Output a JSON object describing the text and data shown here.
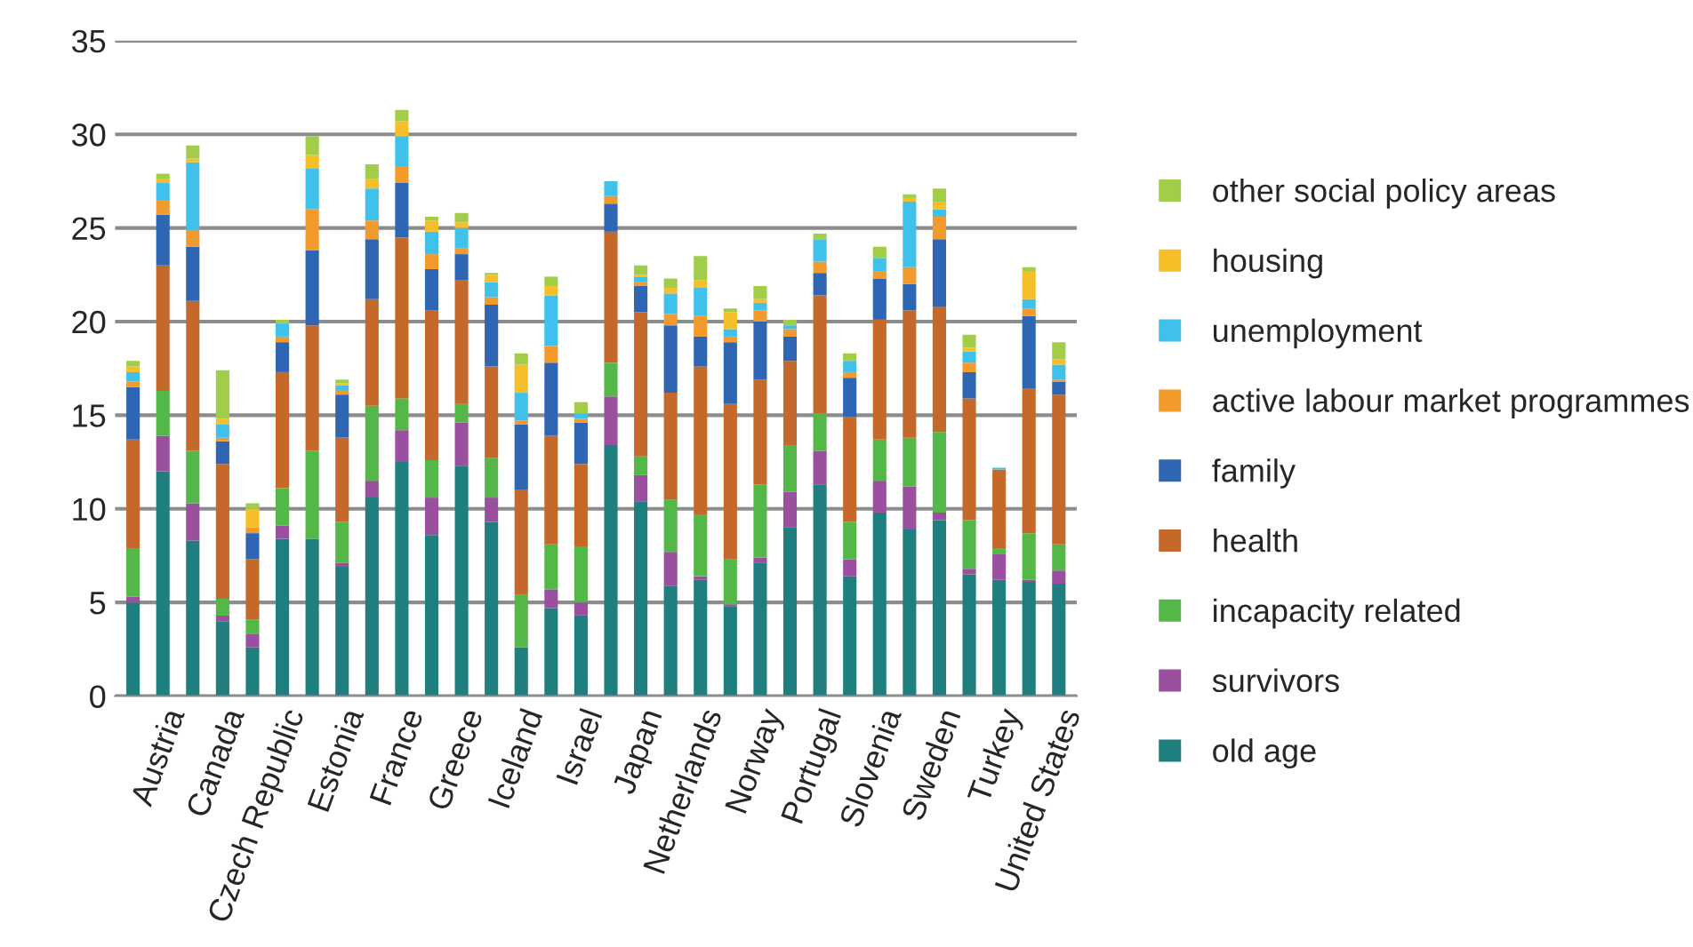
{
  "chart_data": {
    "type": "bar",
    "stacked": true,
    "categories": [
      null,
      "Austria",
      null,
      "Canada",
      null,
      "Czech Republic",
      null,
      "Estonia",
      null,
      "France",
      null,
      "Greece",
      null,
      "Iceland",
      null,
      "Israel",
      null,
      "Japan",
      null,
      "Netherlands",
      null,
      "Norway",
      null,
      "Portugal",
      null,
      "Slovenia",
      null,
      "Sweden",
      null,
      "Turkey",
      null,
      "United States"
    ],
    "series": [
      {
        "name": "old age",
        "color": "#1f7f7f",
        "values": [
          5.0,
          12.0,
          8.3,
          4.0,
          2.6,
          8.4,
          8.4,
          6.9,
          10.6,
          12.5,
          8.6,
          12.3,
          9.3,
          2.6,
          4.7,
          4.3,
          13.4,
          10.4,
          5.9,
          6.2,
          4.8,
          7.1,
          9.0,
          11.3,
          6.4,
          9.8,
          8.9,
          9.4,
          6.5,
          6.2,
          6.1,
          6.0
        ]
      },
      {
        "name": "survivors",
        "color": "#9b4f9f",
        "values": [
          0.3,
          1.9,
          2.0,
          0.3,
          0.7,
          0.7,
          0,
          0.2,
          0.9,
          1.7,
          2.0,
          2.3,
          1.3,
          0,
          1.0,
          0.7,
          2.6,
          1.4,
          1.8,
          0.2,
          0.1,
          0.3,
          1.9,
          1.8,
          0.9,
          1.7,
          2.3,
          0.4,
          0.3,
          1.4,
          0.1,
          0.7
        ]
      },
      {
        "name": "incapacity related",
        "color": "#54b848",
        "values": [
          2.6,
          2.4,
          2.8,
          0.9,
          0.8,
          2.0,
          4.7,
          2.2,
          4.0,
          1.7,
          2.0,
          1.0,
          2.1,
          2.8,
          2.4,
          3.0,
          1.8,
          1.0,
          2.8,
          3.3,
          2.4,
          3.9,
          2.5,
          2.0,
          2.0,
          2.2,
          2.6,
          4.3,
          2.6,
          0.3,
          2.5,
          1.4
        ]
      },
      {
        "name": "health",
        "color": "#c5692a",
        "values": [
          5.8,
          6.7,
          8.0,
          7.2,
          3.2,
          6.2,
          6.7,
          4.5,
          5.7,
          8.6,
          8.0,
          6.6,
          4.9,
          5.6,
          5.8,
          4.4,
          7.0,
          7.7,
          5.7,
          7.9,
          8.3,
          5.6,
          4.5,
          6.3,
          5.6,
          6.4,
          6.8,
          6.7,
          6.5,
          4.2,
          7.7,
          8.0
        ]
      },
      {
        "name": "family",
        "color": "#2e66b4",
        "values": [
          2.8,
          2.7,
          2.9,
          1.2,
          1.4,
          1.6,
          4.0,
          2.3,
          3.2,
          2.9,
          2.2,
          1.4,
          3.3,
          3.5,
          3.9,
          2.2,
          1.5,
          1.4,
          3.6,
          1.6,
          3.3,
          3.1,
          1.3,
          1.2,
          2.1,
          2.2,
          1.4,
          3.6,
          1.4,
          0,
          3.9,
          0.7
        ]
      },
      {
        "name": "active labour market programmes",
        "color": "#f39a2d",
        "values": [
          0.3,
          0.8,
          0.9,
          0.2,
          0.3,
          0.3,
          2.2,
          0.2,
          1.0,
          0.9,
          0.8,
          0.3,
          0.4,
          0.2,
          0.9,
          0.2,
          0.4,
          0.2,
          0.6,
          1.1,
          0.3,
          0.6,
          0.4,
          0.6,
          0.3,
          0.4,
          0.9,
          1.2,
          0.5,
          0,
          0.4,
          0.1
        ]
      },
      {
        "name": "unemployment",
        "color": "#3fc1ec",
        "values": [
          0.5,
          0.9,
          3.6,
          0.7,
          0,
          0.7,
          2.2,
          0.3,
          1.7,
          1.6,
          1.2,
          1.1,
          0.8,
          1.5,
          2.7,
          0.3,
          0.8,
          0.3,
          1.1,
          1.5,
          0.4,
          0.4,
          0.2,
          1.2,
          0.6,
          0.7,
          3.5,
          0.4,
          0.6,
          0.1,
          0.5,
          0.8
        ]
      },
      {
        "name": "housing",
        "color": "#f6bf2a",
        "values": [
          0.3,
          0.2,
          0.2,
          0.3,
          1.0,
          0,
          0.7,
          0.1,
          0.5,
          0.8,
          0.6,
          0.3,
          0.4,
          1.5,
          0.5,
          0,
          0,
          0.1,
          0.3,
          0.4,
          0.9,
          0.2,
          0,
          0,
          0,
          0,
          0.2,
          0.4,
          0.2,
          0,
          1.5,
          0.3
        ]
      },
      {
        "name": "other social policy areas",
        "color": "#a2cd48",
        "values": [
          0.3,
          0.3,
          0.7,
          2.6,
          0.3,
          0.2,
          1.0,
          0.2,
          0.8,
          0.6,
          0.2,
          0.5,
          0.1,
          0.6,
          0.5,
          0.6,
          0,
          0.5,
          0.5,
          1.3,
          0.2,
          0.7,
          0.3,
          0.3,
          0.4,
          0.6,
          0.2,
          0.7,
          0.7,
          0,
          0.2,
          0.9
        ]
      }
    ],
    "ylim": [
      0,
      35
    ],
    "yticks": [
      0,
      5,
      10,
      15,
      20,
      25,
      30,
      35
    ],
    "grid": "y",
    "legend": "right",
    "marker": "square"
  }
}
